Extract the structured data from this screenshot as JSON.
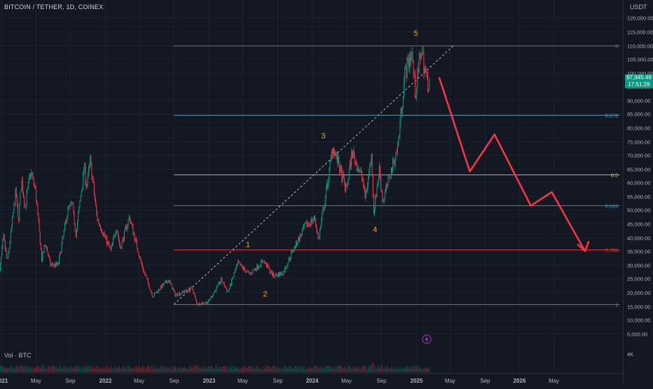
{
  "header": {
    "symbol_title": "BITCOIN / TETHER, 1D, COINEX"
  },
  "axis": {
    "unit": "USDT"
  },
  "current_price": {
    "value": "97,945.49",
    "countdown": "17:51:29",
    "color": "#089981"
  },
  "volume": {
    "label": "Vol · BTC",
    "axis_label": "4K"
  },
  "chart_data": {
    "type": "candlestick",
    "xlabel": "",
    "ylabel": "",
    "ylim": [
      3000,
      123000
    ],
    "y_ticks": [
      5000,
      10000,
      15000,
      20000,
      25000,
      30000,
      35000,
      40000,
      45000,
      50000,
      55000,
      60000,
      65000,
      70000,
      75000,
      80000,
      85000,
      90000,
      95000,
      100000,
      105000,
      110000,
      115000,
      120000
    ],
    "y_tick_labels": [
      "5,000.00",
      "10,000.00",
      "15,000.00",
      "20,000.00",
      "25,000.00",
      "30,000.00",
      "35,000.00",
      "40,000.00",
      "45,000.00",
      "50,000.00",
      "55,000.00",
      "60,000.00",
      "65,000.00",
      "70,000.00",
      "75,000.00",
      "80,000.00",
      "85,000.00",
      "90,000.00",
      "95,000.00",
      "100,000.00",
      "105,000.00",
      "110,000.00",
      "115,000.00",
      "120,000.00"
    ],
    "x_ticks": [
      {
        "date": "2021-01-01",
        "label": "2021"
      },
      {
        "date": "2021-05-01",
        "label": "May"
      },
      {
        "date": "2021-09-01",
        "label": "Sep"
      },
      {
        "date": "2022-01-01",
        "label": "2022"
      },
      {
        "date": "2022-05-01",
        "label": "May"
      },
      {
        "date": "2022-09-01",
        "label": "Sep"
      },
      {
        "date": "2023-01-01",
        "label": "2023"
      },
      {
        "date": "2023-05-01",
        "label": "May"
      },
      {
        "date": "2023-09-01",
        "label": "Sep"
      },
      {
        "date": "2024-01-01",
        "label": "2024"
      },
      {
        "date": "2024-05-01",
        "label": "May"
      },
      {
        "date": "2024-09-01",
        "label": "Sep"
      },
      {
        "date": "2025-01-01",
        "label": "2025"
      },
      {
        "date": "2025-05-01",
        "label": "May"
      },
      {
        "date": "2025-09-01",
        "label": "Sep"
      },
      {
        "date": "2026-01-01",
        "label": "2026"
      },
      {
        "date": "2026-05-01",
        "label": "May"
      }
    ],
    "price_path": [
      [
        "2020-12-20",
        22000
      ],
      [
        "2021-01-08",
        40000
      ],
      [
        "2021-01-22",
        31000
      ],
      [
        "2021-02-21",
        57000
      ],
      [
        "2021-03-01",
        45000
      ],
      [
        "2021-03-13",
        61000
      ],
      [
        "2021-03-25",
        51000
      ],
      [
        "2021-04-14",
        64000
      ],
      [
        "2021-05-01",
        57000
      ],
      [
        "2021-05-23",
        32000
      ],
      [
        "2021-06-05",
        38000
      ],
      [
        "2021-06-22",
        30000
      ],
      [
        "2021-07-20",
        30000
      ],
      [
        "2021-08-23",
        50000
      ],
      [
        "2021-09-07",
        52000
      ],
      [
        "2021-09-21",
        41000
      ],
      [
        "2021-10-20",
        66000
      ],
      [
        "2021-10-28",
        58000
      ],
      [
        "2021-11-10",
        68000
      ],
      [
        "2021-12-04",
        47000
      ],
      [
        "2022-01-22",
        35000
      ],
      [
        "2022-02-10",
        44000
      ],
      [
        "2022-02-24",
        36000
      ],
      [
        "2022-03-28",
        47500
      ],
      [
        "2022-05-10",
        30000
      ],
      [
        "2022-06-18",
        18500
      ],
      [
        "2022-07-10",
        21000
      ],
      [
        "2022-08-13",
        24500
      ],
      [
        "2022-09-06",
        19000
      ],
      [
        "2022-11-05",
        21500
      ],
      [
        "2022-11-21",
        15600
      ],
      [
        "2022-12-31",
        16500
      ],
      [
        "2023-02-15",
        24500
      ],
      [
        "2023-03-10",
        20000
      ],
      [
        "2023-04-14",
        30500
      ],
      [
        "2023-05-25",
        26500
      ],
      [
        "2023-07-13",
        31500
      ],
      [
        "2023-08-17",
        26000
      ],
      [
        "2023-09-20",
        27000
      ],
      [
        "2023-10-24",
        35000
      ],
      [
        "2023-12-08",
        44000
      ],
      [
        "2024-01-11",
        47000
      ],
      [
        "2024-01-23",
        39000
      ],
      [
        "2024-02-28",
        62000
      ],
      [
        "2024-03-14",
        73500
      ],
      [
        "2024-04-30",
        57000
      ],
      [
        "2024-05-21",
        71000
      ],
      [
        "2024-06-28",
        61000
      ],
      [
        "2024-07-05",
        54000
      ],
      [
        "2024-07-29",
        70000
      ],
      [
        "2024-08-05",
        49000
      ],
      [
        "2024-08-25",
        65000
      ],
      [
        "2024-09-06",
        53000
      ],
      [
        "2024-10-29",
        73000
      ],
      [
        "2024-11-22",
        99000
      ],
      [
        "2024-12-17",
        108000
      ],
      [
        "2024-12-30",
        92000
      ],
      [
        "2025-01-20",
        109000
      ],
      [
        "2025-02-10",
        96000
      ],
      [
        "2025-02-20",
        97945
      ]
    ],
    "fibonacci": [
      {
        "level": "0",
        "price": 110000,
        "color": "#787b86"
      },
      {
        "level": "0.272",
        "price": 84500,
        "color": "#5d9bb8"
      },
      {
        "level": "0.5",
        "price": 63000,
        "color": "#d1c33a"
      },
      {
        "level": "0.618",
        "price": 51600,
        "color": "#2a9dd6"
      },
      {
        "level": "0.786",
        "price": 35600,
        "color": "#e0413b"
      },
      {
        "level": "1",
        "price": 15600,
        "color": "#787b86"
      }
    ],
    "fib_range": {
      "start": "2022-09-01",
      "end": "2026-12-20"
    },
    "trendline": {
      "start": [
        "2022-09-01",
        15600
      ],
      "end": [
        "2025-05-15",
        110000
      ]
    },
    "wave_labels": [
      {
        "label": "1",
        "date": "2023-05-20",
        "price": 36500
      },
      {
        "label": "2",
        "date": "2023-07-20",
        "price": 18500
      },
      {
        "label": "3",
        "date": "2024-02-10",
        "price": 76000
      },
      {
        "label": "4",
        "date": "2024-08-10",
        "price": 42000
      },
      {
        "label": "5",
        "date": "2025-01-01",
        "price": 113500
      }
    ],
    "projection": [
      [
        "2025-03-25",
        98000
      ],
      [
        "2025-07-10",
        64000
      ],
      [
        "2025-10-05",
        77500
      ],
      [
        "2026-02-10",
        51500
      ],
      [
        "2026-04-25",
        56500
      ],
      [
        "2026-08-20",
        35000
      ]
    ],
    "projection_color": "#f23645",
    "up_color": "#089981",
    "down_color": "#f23645"
  }
}
